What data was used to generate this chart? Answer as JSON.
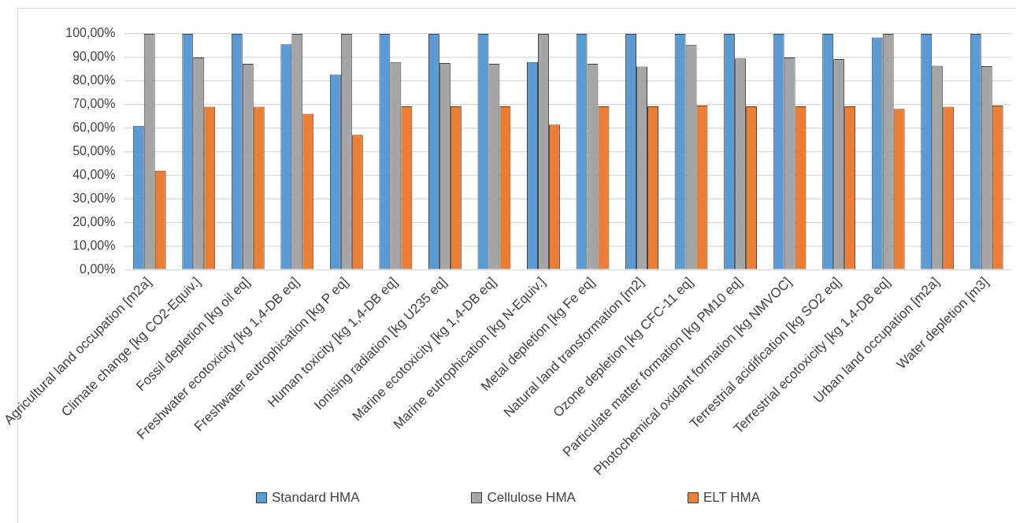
{
  "chart_data": {
    "type": "bar",
    "categories": [
      "Agricultural land occupation [m2a]",
      "Climate change [kg CO2-Equiv.]",
      "Fossil depletion [kg oil eq]",
      "Freshwater ecotoxicity [kg 1,4-DB eq]",
      "Freshwater eutrophication [kg P eq]",
      "Human toxicity [kg 1,4-DB eq]",
      "Ionising radiation [kg U235 eq]",
      "Marine ecotoxicity [kg 1,4-DB eq]",
      "Marine eutrophication [kg N-Equiv.]",
      "Metal depletion [kg Fe eq]",
      "Natural land transformation [m2]",
      "Ozone depletion [kg CFC-11 eq]",
      "Particulate matter formation [kg PM10 eq]",
      "Photochemical oxidant formation [kg NMVOC]",
      "Terrestrial acidification [kg SO2 eq]",
      "Terrestrial ecotoxicity [kg 1,4-DB eq]",
      "Urban land occupation [m2a]",
      "Water depletion [m3]"
    ],
    "series": [
      {
        "name": "Standard HMA",
        "color": "#5b9bd5",
        "values": [
          61,
          100,
          100,
          95.6,
          82.8,
          100,
          100,
          100,
          88.1,
          100,
          100,
          100,
          100,
          100,
          100,
          98.5,
          100,
          100
        ]
      },
      {
        "name": "Cellulose HMA",
        "color": "#a5a5a5",
        "values": [
          100,
          90,
          87.3,
          100,
          100,
          88.1,
          87.6,
          87.3,
          100,
          87.3,
          86.1,
          95.4,
          89.6,
          90,
          89.3,
          100,
          86.5,
          86.3
        ]
      },
      {
        "name": "ELT HMA",
        "color": "#ed7d31",
        "values": [
          42,
          69.1,
          69.1,
          66.1,
          57.2,
          69.3,
          69.3,
          69.3,
          61.5,
          69.3,
          69.3,
          69.6,
          69.3,
          69.3,
          69.3,
          68.2,
          69.1,
          69.6
        ]
      }
    ],
    "ylim": [
      0,
      100
    ],
    "yticks": [
      {
        "value": 0,
        "label": "0,00%"
      },
      {
        "value": 10,
        "label": "10,00%"
      },
      {
        "value": 20,
        "label": "20,00%"
      },
      {
        "value": 30,
        "label": "30,00%"
      },
      {
        "value": 40,
        "label": "40,00%"
      },
      {
        "value": 50,
        "label": "50,00%"
      },
      {
        "value": 60,
        "label": "60,00%"
      },
      {
        "value": 70,
        "label": "70,00%"
      },
      {
        "value": 80,
        "label": "80,00%"
      },
      {
        "value": 90,
        "label": "90,00%"
      },
      {
        "value": 100,
        "label": "100,00%"
      }
    ],
    "grid": "y",
    "legend": "bottom"
  }
}
